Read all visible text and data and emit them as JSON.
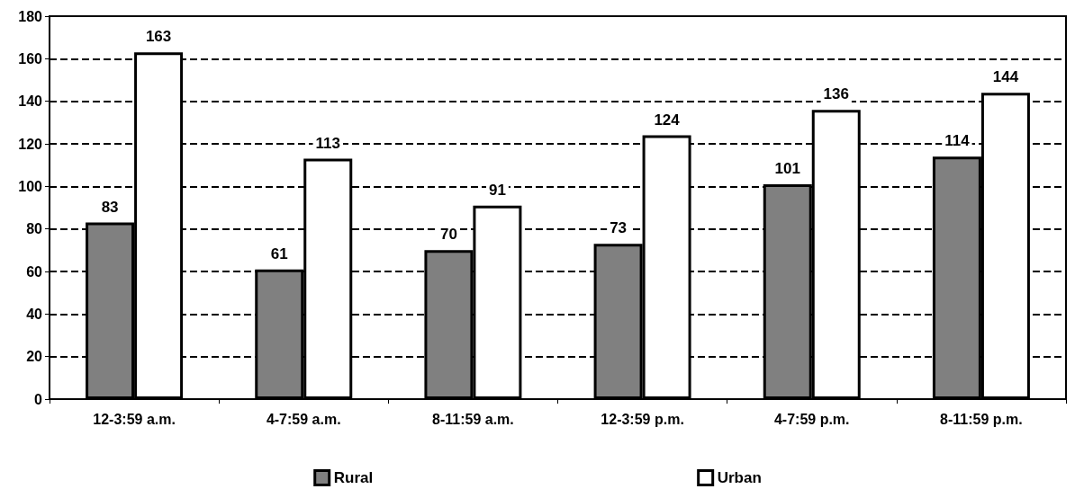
{
  "chart_data": {
    "type": "bar",
    "categories": [
      "12-3:59 a.m.",
      "4-7:59 a.m.",
      "8-11:59 a.m.",
      "12-3:59 p.m.",
      "4-7:59 p.m.",
      "8-11:59 p.m."
    ],
    "series": [
      {
        "name": "Rural",
        "color": "#808080",
        "values": [
          83,
          61,
          70,
          73,
          101,
          114
        ]
      },
      {
        "name": "Urban",
        "color": "#ffffff",
        "values": [
          163,
          113,
          91,
          124,
          136,
          144
        ]
      }
    ],
    "ylim": [
      0,
      180
    ],
    "yticks": [
      0,
      20,
      40,
      60,
      80,
      100,
      120,
      140,
      160,
      180
    ],
    "grid": "y",
    "legend": "bottom",
    "data_labels": true,
    "line_style": "dashed"
  }
}
